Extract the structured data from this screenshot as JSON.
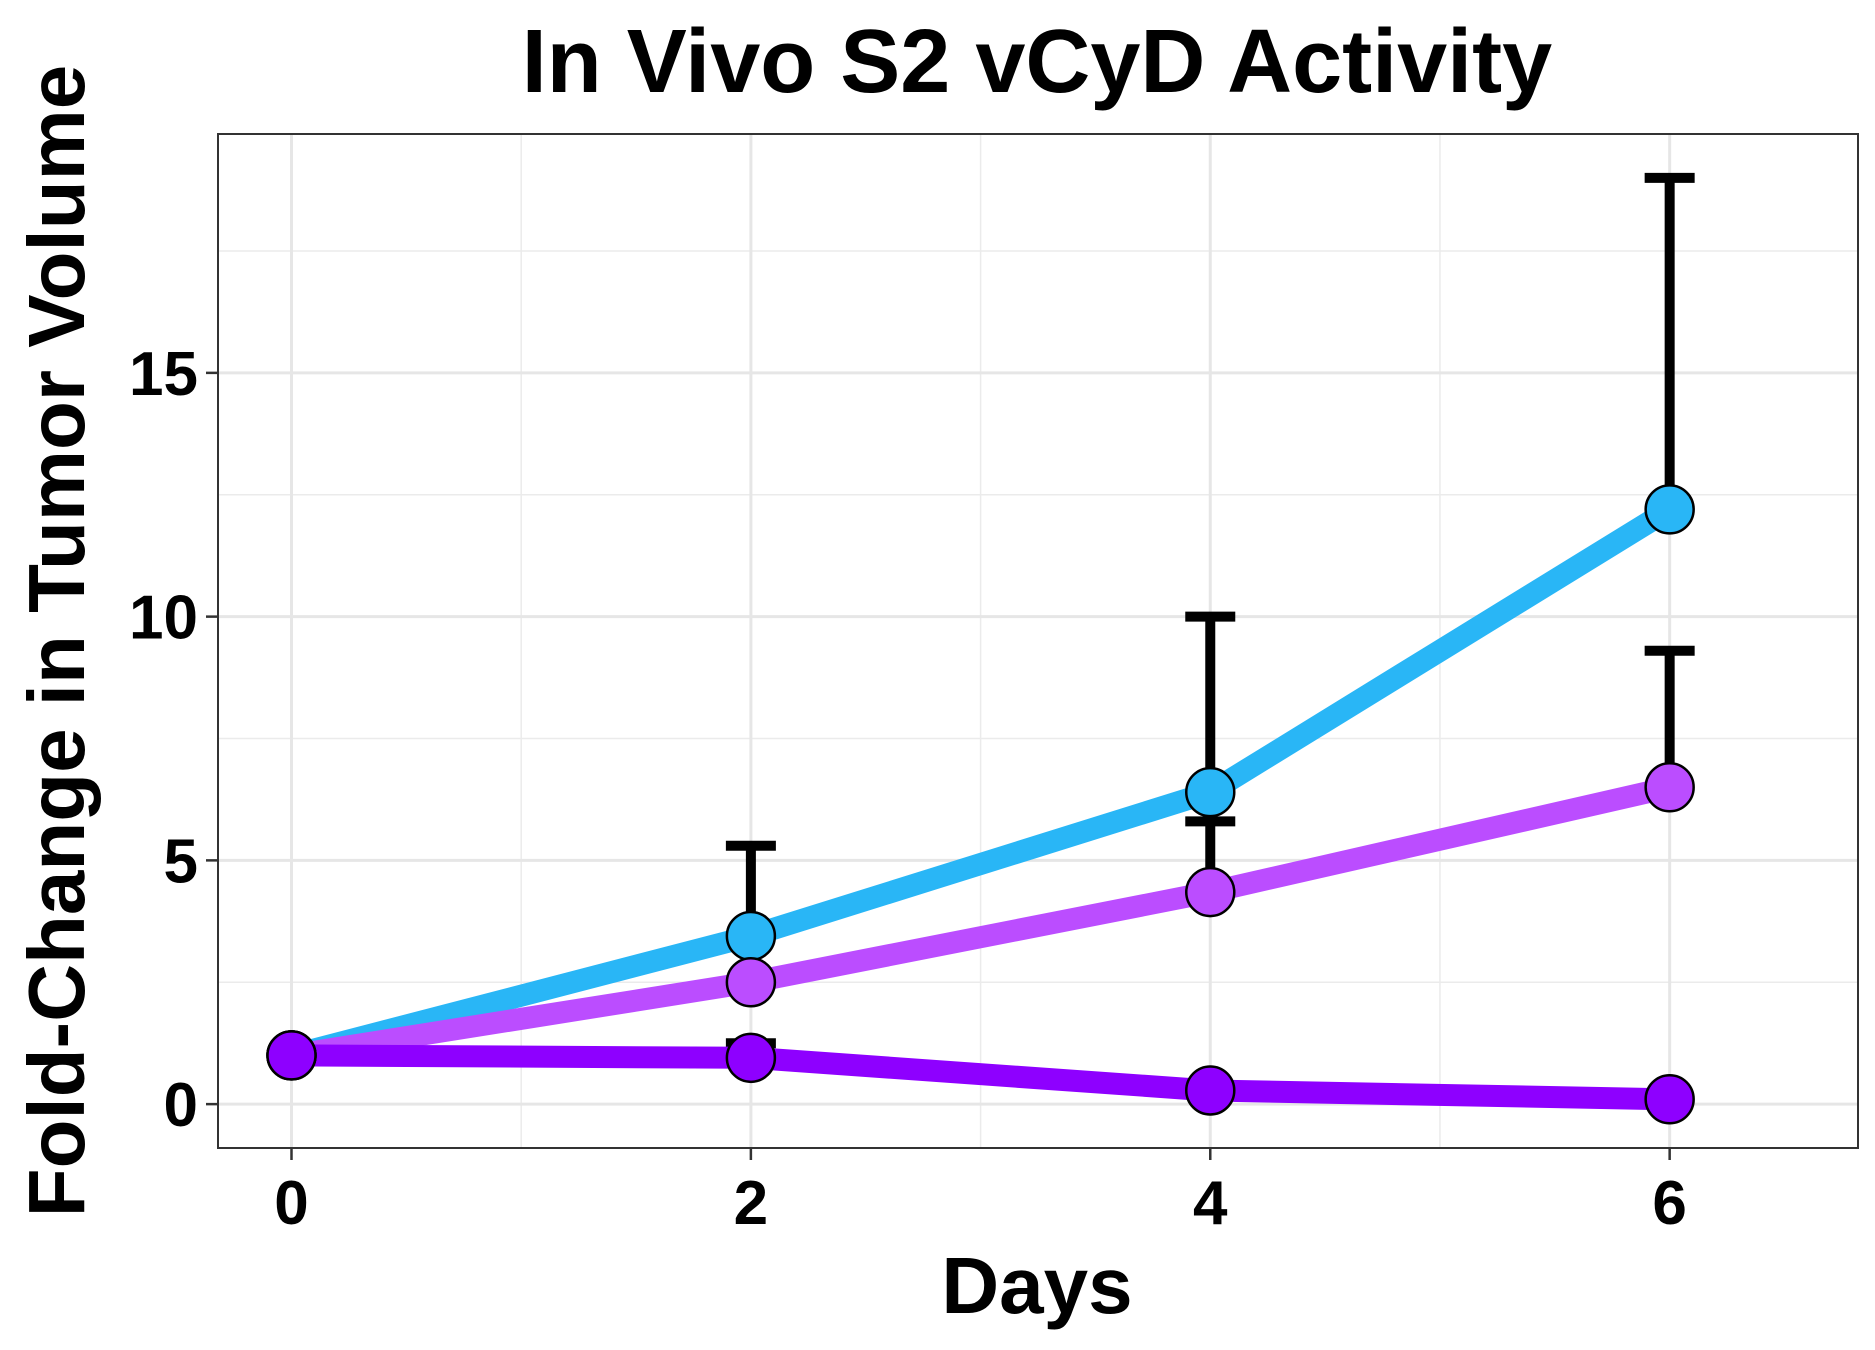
{
  "chart_data": {
    "type": "line",
    "title": "In Vivo S2 vCyD Activity",
    "xlabel": "Days",
    "ylabel": "Fold-Change in Tumor Volume",
    "x": [
      0,
      2,
      4,
      6
    ],
    "xlim": [
      -0.32,
      6.82
    ],
    "ylim": [
      -0.9,
      19.9
    ],
    "xticks": [
      0,
      2,
      4,
      6
    ],
    "xtick_labels": [
      "0",
      "2",
      "4",
      "6"
    ],
    "yticks": [
      0,
      5,
      10,
      15
    ],
    "ytick_labels": [
      "0",
      "5",
      "10",
      "15"
    ],
    "grid": true,
    "legend": "none",
    "series": [
      {
        "color": "#29b6f6",
        "values": [
          1,
          3.45,
          6.4,
          12.2
        ],
        "error_upper": [
          1,
          5.3,
          10.0,
          19.0
        ]
      },
      {
        "color": "#bb4dff",
        "values": [
          1,
          2.5,
          4.35,
          6.5
        ],
        "error_upper": [
          1,
          2.5,
          5.8,
          9.3
        ]
      },
      {
        "color": "#8e00ff",
        "values": [
          1,
          0.95,
          0.28,
          0.1
        ],
        "error_upper": [
          1,
          1.25,
          0.28,
          0.1
        ]
      }
    ]
  }
}
